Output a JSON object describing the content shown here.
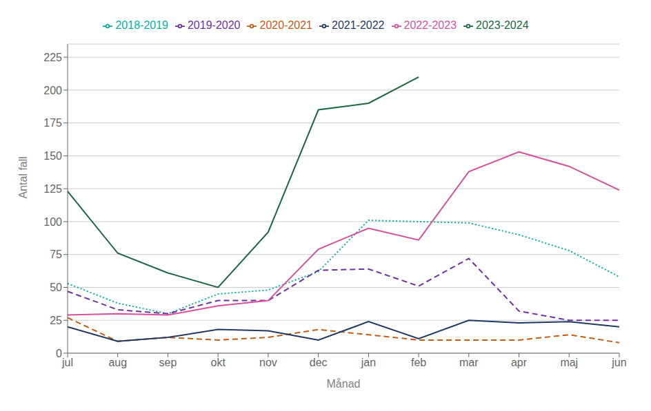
{
  "chart_data": {
    "type": "line",
    "categories": [
      "jul",
      "aug",
      "sep",
      "okt",
      "nov",
      "dec",
      "jan",
      "feb",
      "mar",
      "apr",
      "maj",
      "jun"
    ],
    "series": [
      {
        "name": "2018-2019",
        "color": "#00b0a0",
        "line_style": "dotted",
        "values": [
          53,
          38,
          30,
          45,
          48,
          62,
          101,
          100,
          99,
          90,
          78,
          58
        ]
      },
      {
        "name": "2019-2020",
        "color": "#7030a0",
        "line_style": "dashed",
        "values": [
          47,
          33,
          30,
          40,
          40,
          63,
          64,
          51,
          72,
          32,
          25,
          25
        ]
      },
      {
        "name": "2020-2021",
        "color": "#c55a11",
        "line_style": "dashed",
        "values": [
          27,
          9,
          12,
          10,
          12,
          18,
          14,
          10,
          10,
          10,
          14,
          8
        ]
      },
      {
        "name": "2021-2022",
        "color": "#1f3864",
        "line_style": "solid",
        "values": [
          20,
          9,
          12,
          18,
          17,
          10,
          24,
          11,
          25,
          23,
          24,
          20
        ]
      },
      {
        "name": "2022-2023",
        "color": "#d94f9b",
        "line_style": "solid",
        "values": [
          29,
          30,
          29,
          36,
          40,
          79,
          95,
          86,
          138,
          153,
          142,
          124
        ]
      },
      {
        "name": "2023-2024",
        "color": "#1a6640",
        "line_style": "solid",
        "values": [
          123,
          76,
          61,
          50,
          92,
          185,
          190,
          210,
          null,
          null,
          null,
          null
        ]
      }
    ],
    "xlabel": "Månad",
    "ylabel": "Antal fall",
    "ylim": [
      0,
      235
    ],
    "yticks": [
      0,
      25,
      50,
      75,
      100,
      125,
      150,
      175,
      200,
      225
    ],
    "grid": true,
    "legend": "top"
  }
}
